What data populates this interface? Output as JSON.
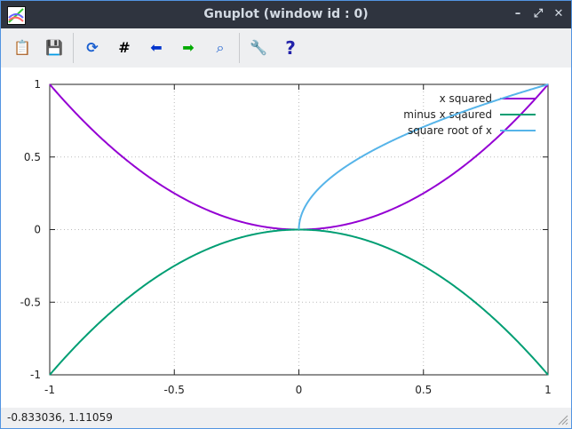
{
  "window": {
    "title": "Gnuplot (window id : 0)"
  },
  "toolbar": {
    "buttons": [
      {
        "name": "copy-clipboard",
        "glyph": "📋"
      },
      {
        "name": "export",
        "glyph": "💾"
      },
      {
        "name": "replot",
        "glyph": "⟳"
      },
      {
        "name": "toggle-grid",
        "glyph": "#"
      },
      {
        "name": "previous-zoom",
        "glyph": "⬅"
      },
      {
        "name": "next-zoom",
        "glyph": "➡"
      },
      {
        "name": "autoscale",
        "glyph": "⌕"
      },
      {
        "name": "settings",
        "glyph": "🔧"
      },
      {
        "name": "help",
        "glyph": "?"
      }
    ]
  },
  "status": {
    "coordinates": "-0.833036,  1.11059"
  },
  "chart_data": {
    "type": "line",
    "xlim": [
      -1,
      1
    ],
    "ylim": [
      -1,
      1
    ],
    "xticks": [
      "-1",
      "-0.5",
      "0",
      "0.5",
      "1"
    ],
    "yticks": [
      "1",
      "0.5",
      "0",
      "-0.5",
      "-1"
    ],
    "grid": true,
    "legend_position": "top-right",
    "series": [
      {
        "name": "x squared",
        "function": "x**2",
        "domain": [
          -1,
          1
        ],
        "color": "#9400d3"
      },
      {
        "name": "minus x sqaured",
        "function": "-x**2",
        "domain": [
          -1,
          1
        ],
        "color": "#009e73"
      },
      {
        "name": "square root of x",
        "function": "sqrt(x)",
        "domain": [
          0,
          1
        ],
        "color": "#56b4e9"
      }
    ]
  }
}
